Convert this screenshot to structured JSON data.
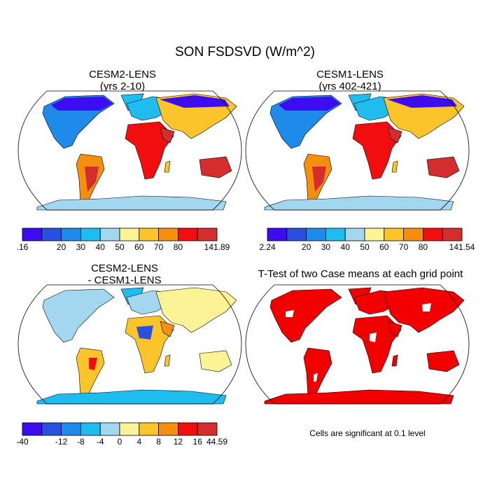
{
  "figure_title": "SON FSDSVD (W/m^2)",
  "panels": {
    "upper_left": {
      "title_line1": "CESM2-LENS",
      "title_line2": "(yrs 2-10)"
    },
    "upper_right": {
      "title_line1": "CESM1-LENS",
      "title_line2": "(yrs 402-421)"
    },
    "lower_left": {
      "title_line1": "CESM2-LENS",
      "title_line2": "- CESM1-LENS"
    },
    "lower_right": {
      "title": "T-Test of two Case means at each grid point"
    }
  },
  "colorbars": {
    "upper_left": {
      "colors": [
        "#3d0df0",
        "#2a50e0",
        "#1e8ae9",
        "#1fbcf0",
        "#a3d7f0",
        "#fbf396",
        "#fbc42a",
        "#f78f0e",
        "#f20e0e",
        "#d42d2d"
      ],
      "labels": [
        ".16",
        "",
        "20",
        "30",
        "40",
        "50",
        "60",
        "70",
        "80",
        "",
        "141.89"
      ]
    },
    "upper_right": {
      "colors": [
        "#3d0df0",
        "#2a50e0",
        "#1e8ae9",
        "#1fbcf0",
        "#a3d7f0",
        "#fbf396",
        "#fbc42a",
        "#f78f0e",
        "#f20e0e",
        "#d42d2d"
      ],
      "labels": [
        "2.24",
        "",
        "20",
        "30",
        "40",
        "50",
        "60",
        "70",
        "80",
        "",
        "141.54"
      ]
    },
    "lower_left": {
      "colors": [
        "#3d0df0",
        "#2a50e0",
        "#1e8ae9",
        "#1fbcf0",
        "#a3d7f0",
        "#fbf396",
        "#fbc42a",
        "#f78f0e",
        "#f20e0e",
        "#d42d2d"
      ],
      "labels": [
        "-40",
        "",
        "-12",
        "-8",
        "-4",
        "0",
        "4",
        "8",
        "12",
        "16",
        "44.59"
      ]
    }
  },
  "significance_note": "Cells are significant at 0.1 level",
  "significance_color": "#f20000"
}
